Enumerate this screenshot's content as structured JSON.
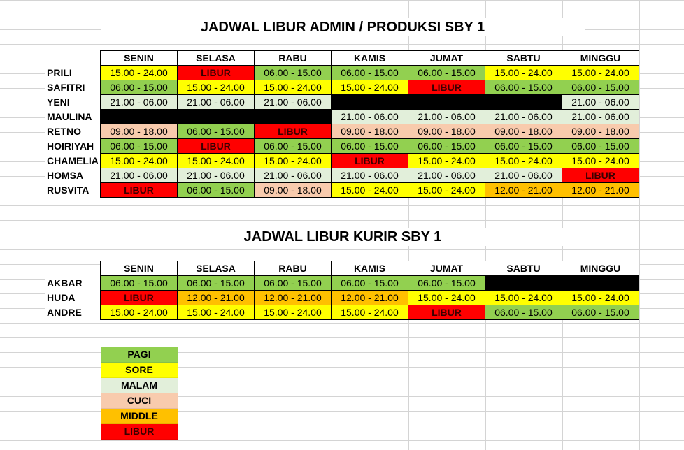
{
  "colors": {
    "PAGI": "#92d050",
    "SORE": "#ffff00",
    "MALAM": "#e2efda",
    "CUCI": "#f8cbad",
    "MIDDLE": "#ffc000",
    "LIBUR": "#ff0000",
    "BLANK": "#000000"
  },
  "admin": {
    "title": "JADWAL LIBUR ADMIN / PRODUKSI SBY 1",
    "days": [
      "SENIN",
      "SELASA",
      "RABU",
      "KAMIS",
      "JUMAT",
      "SABTU",
      "MINGGU"
    ],
    "rows": [
      {
        "name": "PRILI",
        "cells": [
          {
            "t": "15.00 - 24.00",
            "c": "SORE"
          },
          {
            "t": "LIBUR",
            "c": "LIBUR"
          },
          {
            "t": "06.00 - 15.00",
            "c": "PAGI"
          },
          {
            "t": "06.00 - 15.00",
            "c": "PAGI"
          },
          {
            "t": "06.00 - 15.00",
            "c": "PAGI"
          },
          {
            "t": "15.00 - 24.00",
            "c": "SORE"
          },
          {
            "t": "15.00 - 24.00",
            "c": "SORE"
          }
        ]
      },
      {
        "name": "SAFITRI",
        "cells": [
          {
            "t": "06.00 - 15.00",
            "c": "PAGI"
          },
          {
            "t": "15.00 - 24.00",
            "c": "SORE"
          },
          {
            "t": "15.00 - 24.00",
            "c": "SORE"
          },
          {
            "t": "15.00 - 24.00",
            "c": "SORE"
          },
          {
            "t": "LIBUR",
            "c": "LIBUR"
          },
          {
            "t": "06.00 - 15.00",
            "c": "PAGI"
          },
          {
            "t": "06.00 - 15.00",
            "c": "PAGI"
          }
        ]
      },
      {
        "name": "YENI",
        "cells": [
          {
            "t": "21.00 - 06.00",
            "c": "MALAM"
          },
          {
            "t": "21.00 - 06.00",
            "c": "MALAM"
          },
          {
            "t": "21.00 - 06.00",
            "c": "MALAM"
          },
          {
            "t": "",
            "c": "BLANK"
          },
          {
            "t": "",
            "c": "BLANK"
          },
          {
            "t": "",
            "c": "BLANK"
          },
          {
            "t": "21.00 - 06.00",
            "c": "MALAM"
          }
        ]
      },
      {
        "name": "MAULINA",
        "cells": [
          {
            "t": "",
            "c": "BLANK"
          },
          {
            "t": "",
            "c": "BLANK"
          },
          {
            "t": "",
            "c": "BLANK"
          },
          {
            "t": "21.00 - 06.00",
            "c": "MALAM"
          },
          {
            "t": "21.00 - 06.00",
            "c": "MALAM"
          },
          {
            "t": "21.00 - 06.00",
            "c": "MALAM"
          },
          {
            "t": "21.00 - 06.00",
            "c": "MALAM"
          }
        ]
      },
      {
        "name": "RETNO",
        "cells": [
          {
            "t": "09.00 - 18.00",
            "c": "CUCI"
          },
          {
            "t": "06.00 - 15.00",
            "c": "PAGI"
          },
          {
            "t": "LIBUR",
            "c": "LIBUR"
          },
          {
            "t": "09.00 - 18.00",
            "c": "CUCI"
          },
          {
            "t": "09.00 - 18.00",
            "c": "CUCI"
          },
          {
            "t": "09.00 - 18.00",
            "c": "CUCI"
          },
          {
            "t": "09.00 - 18.00",
            "c": "CUCI"
          }
        ]
      },
      {
        "name": "HOIRIYAH",
        "cells": [
          {
            "t": "06.00 - 15.00",
            "c": "PAGI"
          },
          {
            "t": "LIBUR",
            "c": "LIBUR"
          },
          {
            "t": "06.00 - 15.00",
            "c": "PAGI"
          },
          {
            "t": "06.00 - 15.00",
            "c": "PAGI"
          },
          {
            "t": "06.00 - 15.00",
            "c": "PAGI"
          },
          {
            "t": "06.00 - 15.00",
            "c": "PAGI"
          },
          {
            "t": "06.00 - 15.00",
            "c": "PAGI"
          }
        ]
      },
      {
        "name": "CHAMELIA",
        "cells": [
          {
            "t": "15.00 - 24.00",
            "c": "SORE"
          },
          {
            "t": "15.00 - 24.00",
            "c": "SORE"
          },
          {
            "t": "15.00 - 24.00",
            "c": "SORE"
          },
          {
            "t": "LIBUR",
            "c": "LIBUR"
          },
          {
            "t": "15.00 - 24.00",
            "c": "SORE"
          },
          {
            "t": "15.00 - 24.00",
            "c": "SORE"
          },
          {
            "t": "15.00 - 24.00",
            "c": "SORE"
          }
        ]
      },
      {
        "name": "HOMSA",
        "cells": [
          {
            "t": "21.00 - 06.00",
            "c": "MALAM"
          },
          {
            "t": "21.00 - 06.00",
            "c": "MALAM"
          },
          {
            "t": "21.00 - 06.00",
            "c": "MALAM"
          },
          {
            "t": "21.00 - 06.00",
            "c": "MALAM"
          },
          {
            "t": "21.00 - 06.00",
            "c": "MALAM"
          },
          {
            "t": "21.00 - 06.00",
            "c": "MALAM"
          },
          {
            "t": "LIBUR",
            "c": "LIBUR"
          }
        ]
      },
      {
        "name": "RUSVITA",
        "cells": [
          {
            "t": "LIBUR",
            "c": "LIBUR"
          },
          {
            "t": "06.00 - 15.00",
            "c": "PAGI"
          },
          {
            "t": "09.00 - 18.00",
            "c": "CUCI"
          },
          {
            "t": "15.00 - 24.00",
            "c": "SORE"
          },
          {
            "t": "15.00 - 24.00",
            "c": "SORE"
          },
          {
            "t": "12.00 - 21.00",
            "c": "MIDDLE"
          },
          {
            "t": "12.00 - 21.00",
            "c": "MIDDLE"
          }
        ]
      }
    ]
  },
  "kurir": {
    "title": "JADWAL LIBUR KURIR SBY 1",
    "days": [
      "SENIN",
      "SELASA",
      "RABU",
      "KAMIS",
      "JUMAT",
      "SABTU",
      "MINGGU"
    ],
    "rows": [
      {
        "name": "AKBAR",
        "cells": [
          {
            "t": "06.00 - 15.00",
            "c": "PAGI"
          },
          {
            "t": "06.00 - 15.00",
            "c": "PAGI"
          },
          {
            "t": "06.00 - 15.00",
            "c": "PAGI"
          },
          {
            "t": "06.00 - 15.00",
            "c": "PAGI"
          },
          {
            "t": "06.00 - 15.00",
            "c": "PAGI"
          },
          {
            "t": "",
            "c": "BLANK"
          },
          {
            "t": "",
            "c": "BLANK"
          }
        ]
      },
      {
        "name": "HUDA",
        "cells": [
          {
            "t": "LIBUR",
            "c": "LIBUR"
          },
          {
            "t": "12.00 - 21.00",
            "c": "MIDDLE"
          },
          {
            "t": "12.00 - 21.00",
            "c": "MIDDLE"
          },
          {
            "t": "12.00 - 21.00",
            "c": "MIDDLE"
          },
          {
            "t": "15.00 - 24.00",
            "c": "SORE"
          },
          {
            "t": "15.00 - 24.00",
            "c": "SORE"
          },
          {
            "t": "15.00 - 24.00",
            "c": "SORE"
          }
        ]
      },
      {
        "name": "ANDRE",
        "cells": [
          {
            "t": "15.00 - 24.00",
            "c": "SORE"
          },
          {
            "t": "15.00 - 24.00",
            "c": "SORE"
          },
          {
            "t": "15.00 - 24.00",
            "c": "SORE"
          },
          {
            "t": "15.00 - 24.00",
            "c": "SORE"
          },
          {
            "t": "LIBUR",
            "c": "LIBUR"
          },
          {
            "t": "06.00 - 15.00",
            "c": "PAGI"
          },
          {
            "t": "06.00 - 15.00",
            "c": "PAGI"
          }
        ]
      }
    ]
  },
  "legend": [
    {
      "label": "PAGI",
      "c": "PAGI"
    },
    {
      "label": "SORE",
      "c": "SORE"
    },
    {
      "label": "MALAM",
      "c": "MALAM"
    },
    {
      "label": "CUCI",
      "c": "CUCI"
    },
    {
      "label": "MIDDLE",
      "c": "MIDDLE"
    },
    {
      "label": "LIBUR",
      "c": "LIBUR"
    }
  ]
}
